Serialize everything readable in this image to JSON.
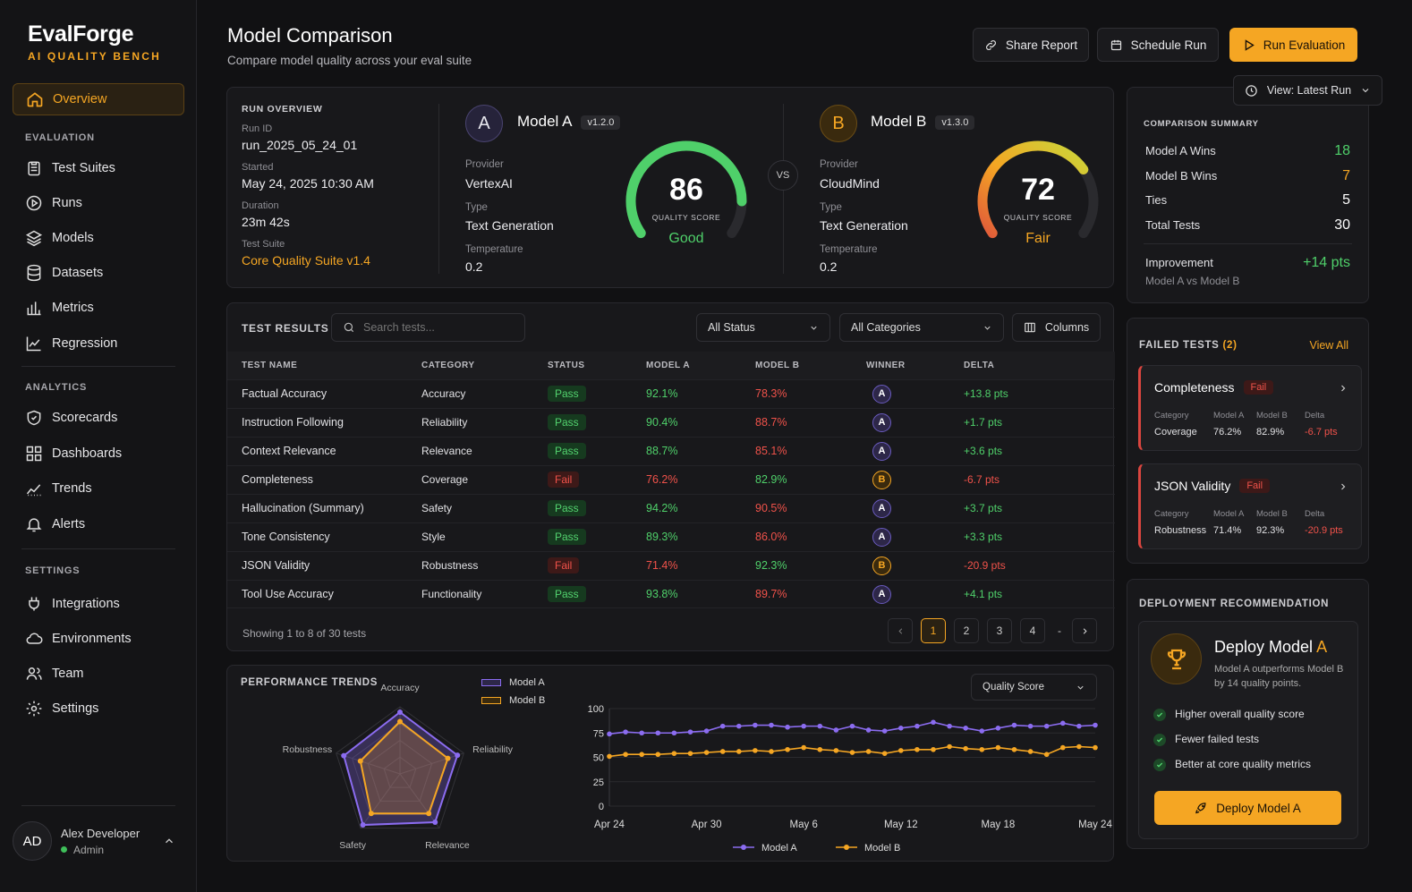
{
  "brand": {
    "name": "EvalForge",
    "sub": "AI QUALITY BENCH"
  },
  "nav": {
    "overview": "Overview",
    "evaluation_title": "EVALUATION",
    "evaluation": [
      "Test Suites",
      "Runs",
      "Models",
      "Datasets",
      "Metrics",
      "Regression"
    ],
    "analytics_title": "ANALYTICS",
    "analytics": [
      "Scorecards",
      "Dashboards",
      "Trends",
      "Alerts"
    ],
    "settings_title": "SETTINGS",
    "settings": [
      "Integrations",
      "Environments",
      "Team",
      "Settings"
    ]
  },
  "user": {
    "initials": "AD",
    "name": "Alex Developer",
    "role": "Admin"
  },
  "header": {
    "title": "Model Comparison",
    "subtitle": "Compare model quality across your eval suite",
    "share": "Share Report",
    "schedule": "Schedule Run",
    "run": "Run Evaluation",
    "view": "View: Latest Run"
  },
  "run": {
    "title": "RUN OVERVIEW",
    "id_label": "Run ID",
    "id": "run_2025_05_24_01",
    "started_label": "Started",
    "started": "May 24, 2025 10:30 AM",
    "duration_label": "Duration",
    "duration": "23m 42s",
    "suite_label": "Test Suite",
    "suite": "Core Quality Suite v1.4"
  },
  "modelA": {
    "letter": "A",
    "name": "Model A",
    "version": "v1.2.0",
    "provider_label": "Provider",
    "provider": "VertexAI",
    "type_label": "Type",
    "type": "Text Generation",
    "temp_label": "Temperature",
    "temp": "0.2",
    "score": "86",
    "score_value": 86,
    "score_label": "QUALITY SCORE",
    "rating": "Good",
    "color": "#4fd06a"
  },
  "modelB": {
    "letter": "B",
    "name": "Model B",
    "version": "v1.3.0",
    "provider_label": "Provider",
    "provider": "CloudMind",
    "type_label": "Type",
    "type": "Text Generation",
    "temp_label": "Temperature",
    "temp": "0.2",
    "score": "72",
    "score_value": 72,
    "score_label": "QUALITY SCORE",
    "rating": "Fair",
    "color": "#f5a623"
  },
  "vs": "VS",
  "summary": {
    "title": "COMPARISON SUMMARY",
    "a_wins_label": "Model A Wins",
    "a_wins": "18",
    "b_wins_label": "Model B Wins",
    "b_wins": "7",
    "ties_label": "Ties",
    "ties": "5",
    "total_label": "Total Tests",
    "total": "30",
    "improvement_label": "Improvement",
    "improvement": "+14 pts",
    "improvement_sub": "Model A vs Model B"
  },
  "results": {
    "title": "TEST RESULTS",
    "search_placeholder": "Search tests...",
    "status_filter": "All Status",
    "category_filter": "All Categories",
    "columns": "Columns",
    "headers": [
      "TEST NAME",
      "CATEGORY",
      "STATUS",
      "MODEL A",
      "MODEL B",
      "WINNER",
      "DELTA"
    ],
    "rows": [
      {
        "name": "Factual Accuracy",
        "category": "Accuracy",
        "status": "Pass",
        "a": "92.1%",
        "b": "78.3%",
        "winner": "A",
        "delta": "+13.8 pts"
      },
      {
        "name": "Instruction Following",
        "category": "Reliability",
        "status": "Pass",
        "a": "90.4%",
        "b": "88.7%",
        "winner": "A",
        "delta": "+1.7 pts"
      },
      {
        "name": "Context Relevance",
        "category": "Relevance",
        "status": "Pass",
        "a": "88.7%",
        "b": "85.1%",
        "winner": "A",
        "delta": "+3.6 pts"
      },
      {
        "name": "Completeness",
        "category": "Coverage",
        "status": "Fail",
        "a": "76.2%",
        "b": "82.9%",
        "winner": "B",
        "delta": "-6.7 pts"
      },
      {
        "name": "Hallucination (Summary)",
        "category": "Safety",
        "status": "Pass",
        "a": "94.2%",
        "b": "90.5%",
        "winner": "A",
        "delta": "+3.7 pts"
      },
      {
        "name": "Tone Consistency",
        "category": "Style",
        "status": "Pass",
        "a": "89.3%",
        "b": "86.0%",
        "winner": "A",
        "delta": "+3.3 pts"
      },
      {
        "name": "JSON Validity",
        "category": "Robustness",
        "status": "Fail",
        "a": "71.4%",
        "b": "92.3%",
        "winner": "B",
        "delta": "-20.9 pts"
      },
      {
        "name": "Tool Use Accuracy",
        "category": "Functionality",
        "status": "Pass",
        "a": "93.8%",
        "b": "89.7%",
        "winner": "A",
        "delta": "+4.1 pts"
      }
    ],
    "footer": "Showing 1 to 8 of 30 tests",
    "pages": [
      "1",
      "2",
      "3",
      "4",
      "-"
    ]
  },
  "failed": {
    "title": "FAILED TESTS",
    "count": "(2)",
    "view_all": "View All",
    "col_labels": [
      "Category",
      "Model A",
      "Model B",
      "Delta"
    ],
    "items": [
      {
        "name": "Completeness",
        "status": "Fail",
        "category": "Coverage",
        "a": "76.2%",
        "b": "82.9%",
        "delta": "-6.7 pts"
      },
      {
        "name": "JSON Validity",
        "status": "Fail",
        "category": "Robustness",
        "a": "71.4%",
        "b": "92.3%",
        "delta": "-20.9 pts"
      }
    ]
  },
  "deploy": {
    "title": "DEPLOYMENT RECOMMENDATION",
    "heading_prefix": "Deploy Model ",
    "heading_letter": "A",
    "desc": "Model A outperforms Model B by 14 quality points.",
    "points": [
      "Higher overall quality score",
      "Fewer failed tests",
      "Better at core quality metrics"
    ],
    "button": "Deploy Model A"
  },
  "trends": {
    "title": "PERFORMANCE TRENDS",
    "metric": "Quality Score"
  },
  "chart_data": [
    {
      "type": "radar",
      "axes": [
        "Accuracy",
        "Reliability",
        "Relevance",
        "Safety",
        "Robustness"
      ],
      "range": [
        0,
        100
      ],
      "series": [
        {
          "name": "Model A",
          "values": [
            92,
            90,
            89,
            94,
            88
          ],
          "color": "#8b6cf0"
        },
        {
          "name": "Model B",
          "values": [
            78,
            75,
            73,
            73,
            62
          ],
          "color": "#f5a623"
        }
      ],
      "legend": "top"
    },
    {
      "type": "line",
      "x": [
        "Apr 24",
        "Apr 25",
        "Apr 26",
        "Apr 27",
        "Apr 28",
        "Apr 29",
        "Apr 30",
        "May 1",
        "May 2",
        "May 3",
        "May 4",
        "May 5",
        "May 6",
        "May 7",
        "May 8",
        "May 9",
        "May 10",
        "May 11",
        "May 12",
        "May 13",
        "May 14",
        "May 15",
        "May 16",
        "May 17",
        "May 18",
        "May 19",
        "May 20",
        "May 21",
        "May 22",
        "May 23",
        "May 24"
      ],
      "xticks": [
        "Apr 24",
        "Apr 30",
        "May 6",
        "May 12",
        "May 18",
        "May 24"
      ],
      "ylim": [
        0,
        100
      ],
      "yticks": [
        0,
        25,
        50,
        75,
        100
      ],
      "series": [
        {
          "name": "Model A",
          "color": "#8b6cf0",
          "values": [
            74,
            76,
            75,
            75,
            75,
            76,
            77,
            82,
            82,
            83,
            83,
            81,
            82,
            82,
            78,
            82,
            78,
            77,
            80,
            82,
            86,
            82,
            80,
            77,
            80,
            83,
            82,
            82,
            85,
            82,
            83
          ]
        },
        {
          "name": "Model B",
          "color": "#f5a623",
          "values": [
            51,
            53,
            53,
            53,
            54,
            54,
            55,
            56,
            56,
            57,
            56,
            58,
            60,
            58,
            57,
            55,
            56,
            54,
            57,
            58,
            58,
            61,
            59,
            58,
            60,
            58,
            56,
            53,
            60,
            61,
            60
          ]
        }
      ],
      "legend": "bottom"
    }
  ]
}
